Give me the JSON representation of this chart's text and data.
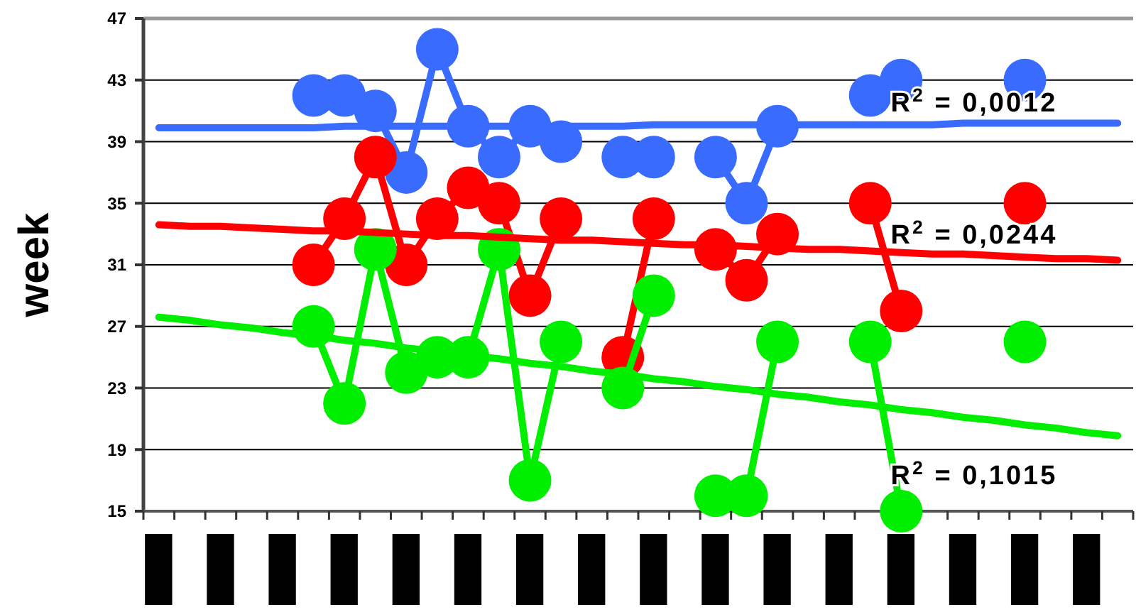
{
  "chart_data": {
    "type": "line",
    "ylabel": "week",
    "categories": [
      null,
      null,
      null,
      null,
      null,
      null,
      null,
      null,
      null,
      null,
      null,
      null,
      null,
      null,
      null,
      null,
      null,
      null,
      null,
      null,
      null,
      null,
      null,
      null,
      null,
      null,
      null,
      null,
      null,
      null,
      null,
      null
    ],
    "ylim": [
      15,
      47
    ],
    "yticks": [
      15,
      19,
      23,
      27,
      31,
      35,
      39,
      43,
      47
    ],
    "tick_labels": "y",
    "grid": "y",
    "marker": "circle",
    "line_style": "solid",
    "series": [
      {
        "color": "#3a6bff",
        "values": [
          null,
          null,
          null,
          null,
          null,
          42,
          42,
          41,
          37,
          45,
          40,
          38,
          40,
          39,
          null,
          38,
          38,
          null,
          38,
          35,
          40,
          null,
          null,
          42,
          43,
          null,
          null,
          null,
          43,
          null,
          null,
          null
        ]
      },
      {
        "color": "#ff0000",
        "values": [
          null,
          null,
          null,
          null,
          null,
          31,
          34,
          38,
          31,
          34,
          36,
          35,
          29,
          34,
          null,
          25,
          34,
          null,
          32,
          30,
          33,
          null,
          null,
          35,
          28,
          null,
          null,
          null,
          35,
          null,
          null,
          null
        ]
      },
      {
        "color": "#00ee00",
        "values": [
          null,
          null,
          null,
          null,
          null,
          27,
          22,
          32,
          24,
          25,
          25,
          32,
          17,
          26,
          null,
          23,
          29,
          null,
          16,
          16,
          26,
          null,
          null,
          26,
          15,
          null,
          null,
          null,
          26,
          null,
          null,
          null
        ]
      },
      {
        "color": "#3a6bff",
        "marker": "none",
        "values": [
          39.9,
          39.9,
          39.9,
          39.9,
          39.9,
          39.9,
          40.0,
          40.0,
          40.0,
          40.0,
          40.0,
          40.0,
          40.0,
          40.0,
          40.0,
          40.0,
          40.1,
          40.1,
          40.1,
          40.1,
          40.1,
          40.1,
          40.1,
          40.1,
          40.1,
          40.1,
          40.2,
          40.2,
          40.2,
          40.2,
          40.2,
          40.2
        ]
      },
      {
        "color": "#ff0000",
        "marker": "none",
        "values": [
          33.6,
          33.5,
          33.5,
          33.4,
          33.3,
          33.2,
          33.2,
          33.1,
          33.0,
          32.9,
          32.9,
          32.8,
          32.7,
          32.6,
          32.6,
          32.5,
          32.4,
          32.3,
          32.3,
          32.2,
          32.1,
          32.0,
          32.0,
          31.9,
          31.8,
          31.7,
          31.7,
          31.6,
          31.5,
          31.4,
          31.4,
          31.3
        ]
      },
      {
        "color": "#00ee00",
        "marker": "none",
        "values": [
          27.6,
          27.4,
          27.1,
          26.9,
          26.6,
          26.4,
          26.1,
          25.9,
          25.6,
          25.4,
          25.1,
          24.9,
          24.6,
          24.4,
          24.1,
          23.9,
          23.6,
          23.4,
          23.1,
          22.9,
          22.6,
          22.4,
          22.1,
          21.9,
          21.6,
          21.4,
          21.1,
          20.9,
          20.6,
          20.4,
          20.1,
          19.9
        ]
      }
    ],
    "annotations": [
      "R$^{2}$ = 0,0012",
      "R$^{2}$ = 0,0244",
      "R$^{2}$ = 0,1015"
    ]
  }
}
